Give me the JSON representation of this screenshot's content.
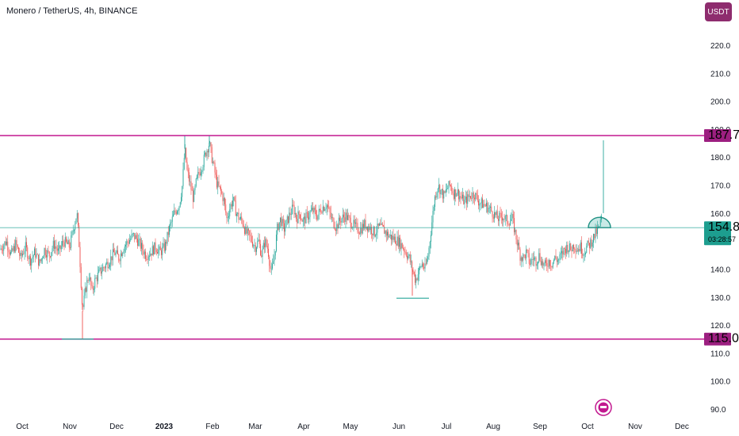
{
  "header": {
    "symbol_title": "Monero / TetherUS, 4h, BINANCE",
    "currency_label": "USDT"
  },
  "chart_data": {
    "type": "candlestick",
    "ylim": [
      90,
      225
    ],
    "y_ticks": [
      "90.0",
      "100.0",
      "110.0",
      "120.0",
      "130.0",
      "140.0",
      "150.0",
      "160.0",
      "170.0",
      "180.0",
      "190.0",
      "200.0",
      "210.0",
      "220.0"
    ],
    "x_ticks": [
      "Oct",
      "Nov",
      "Dec",
      "2023",
      "Feb",
      "Mar",
      "Apr",
      "May",
      "Jun",
      "Jul",
      "Aug",
      "Sep",
      "Oct",
      "Nov",
      "Dec"
    ],
    "series": [
      {
        "price_path": [
          [
            0,
            147
          ],
          [
            8,
            150
          ],
          [
            14,
            145
          ],
          [
            20,
            149
          ],
          [
            26,
            144
          ],
          [
            32,
            148
          ],
          [
            38,
            143
          ],
          [
            44,
            146
          ],
          [
            50,
            142
          ],
          [
            56,
            147
          ],
          [
            62,
            145
          ],
          [
            68,
            149
          ],
          [
            74,
            146
          ],
          [
            80,
            150
          ],
          [
            88,
            148
          ],
          [
            93,
            155
          ],
          [
            97,
            160
          ],
          [
            100,
            148
          ],
          [
            104,
            125
          ],
          [
            108,
            133
          ],
          [
            112,
            138
          ],
          [
            116,
            132
          ],
          [
            120,
            136
          ],
          [
            126,
            139
          ],
          [
            132,
            141
          ],
          [
            138,
            143
          ],
          [
            144,
            146
          ],
          [
            150,
            144
          ],
          [
            156,
            148
          ],
          [
            162,
            150
          ],
          [
            168,
            152
          ],
          [
            172,
            151
          ],
          [
            178,
            148
          ],
          [
            184,
            145
          ],
          [
            190,
            146
          ],
          [
            196,
            148
          ],
          [
            202,
            146
          ],
          [
            208,
            148
          ],
          [
            214,
            155
          ],
          [
            220,
            160
          ],
          [
            226,
            163
          ],
          [
            230,
            170
          ],
          [
            233,
            183
          ],
          [
            236,
            175
          ],
          [
            240,
            170
          ],
          [
            244,
            165
          ],
          [
            248,
            172
          ],
          [
            252,
            175
          ],
          [
            256,
            178
          ],
          [
            260,
            182
          ],
          [
            264,
            185
          ],
          [
            267,
            180
          ],
          [
            270,
            176
          ],
          [
            274,
            170
          ],
          [
            278,
            168
          ],
          [
            282,
            165
          ],
          [
            286,
            158
          ],
          [
            290,
            162
          ],
          [
            294,
            165
          ],
          [
            298,
            160
          ],
          [
            302,
            158
          ],
          [
            306,
            157
          ],
          [
            310,
            153
          ],
          [
            314,
            152
          ],
          [
            318,
            150
          ],
          [
            322,
            148
          ],
          [
            326,
            150
          ],
          [
            330,
            145
          ],
          [
            334,
            150
          ],
          [
            338,
            147
          ],
          [
            342,
            138
          ],
          [
            346,
            145
          ],
          [
            350,
            155
          ],
          [
            354,
            158
          ],
          [
            358,
            154
          ],
          [
            362,
            157
          ],
          [
            366,
            160
          ],
          [
            370,
            162
          ],
          [
            374,
            158
          ],
          [
            378,
            160
          ],
          [
            382,
            157
          ],
          [
            388,
            159
          ],
          [
            394,
            161
          ],
          [
            400,
            159
          ],
          [
            406,
            162
          ],
          [
            412,
            163
          ],
          [
            418,
            158
          ],
          [
            424,
            155
          ],
          [
            430,
            158
          ],
          [
            436,
            159
          ],
          [
            442,
            157
          ],
          [
            448,
            155
          ],
          [
            454,
            154
          ],
          [
            460,
            156
          ],
          [
            466,
            155
          ],
          [
            472,
            153
          ],
          [
            478,
            155
          ],
          [
            484,
            154
          ],
          [
            490,
            152
          ],
          [
            496,
            151
          ],
          [
            502,
            150
          ],
          [
            508,
            148
          ],
          [
            512,
            146
          ],
          [
            516,
            144
          ],
          [
            520,
            140
          ],
          [
            524,
            136
          ],
          [
            528,
            139
          ],
          [
            532,
            142
          ],
          [
            536,
            140
          ],
          [
            540,
            145
          ],
          [
            544,
            155
          ],
          [
            548,
            165
          ],
          [
            552,
            170
          ],
          [
            556,
            168
          ],
          [
            560,
            166
          ],
          [
            564,
            169
          ],
          [
            568,
            170
          ],
          [
            572,
            167
          ],
          [
            576,
            168
          ],
          [
            580,
            166
          ],
          [
            586,
            164
          ],
          [
            592,
            166
          ],
          [
            598,
            167
          ],
          [
            604,
            164
          ],
          [
            610,
            163
          ],
          [
            616,
            162
          ],
          [
            622,
            160
          ],
          [
            628,
            158
          ],
          [
            634,
            159
          ],
          [
            640,
            157
          ],
          [
            646,
            158
          ],
          [
            652,
            150
          ],
          [
            656,
            145
          ],
          [
            660,
            144
          ],
          [
            664,
            146
          ],
          [
            668,
            142
          ],
          [
            672,
            144
          ],
          [
            676,
            143
          ],
          [
            680,
            145
          ],
          [
            684,
            142
          ],
          [
            688,
            141
          ],
          [
            692,
            143
          ],
          [
            696,
            142
          ],
          [
            700,
            144
          ],
          [
            704,
            143
          ],
          [
            708,
            145
          ],
          [
            712,
            147
          ],
          [
            716,
            148
          ],
          [
            720,
            147
          ],
          [
            724,
            149
          ],
          [
            728,
            147
          ],
          [
            732,
            148
          ],
          [
            736,
            146
          ],
          [
            740,
            148
          ],
          [
            744,
            149
          ],
          [
            748,
            151
          ],
          [
            752,
            153
          ],
          [
            756,
            155
          ],
          [
            760,
            160
          ]
        ],
        "spikes": [
          [
            104,
            115.0
          ],
          [
            233,
            187.7
          ],
          [
            264,
            187.7
          ],
          [
            520,
            130.5
          ],
          [
            761,
            186
          ]
        ],
        "up_color": "#26a69a",
        "down_color": "#ef5350"
      }
    ],
    "annotations": {
      "resistance_level": "187.7",
      "support_level": "115.0",
      "current_price": "154.8",
      "countdown": "03:28:57",
      "resistance_value": 187.7,
      "support_value": 115.0,
      "current_value": 154.8,
      "level_color": "#c2188f",
      "current_color": "#26a69a",
      "tag_level_color": "#9c1f80",
      "tag_current_color": "#1d9e8f"
    }
  }
}
